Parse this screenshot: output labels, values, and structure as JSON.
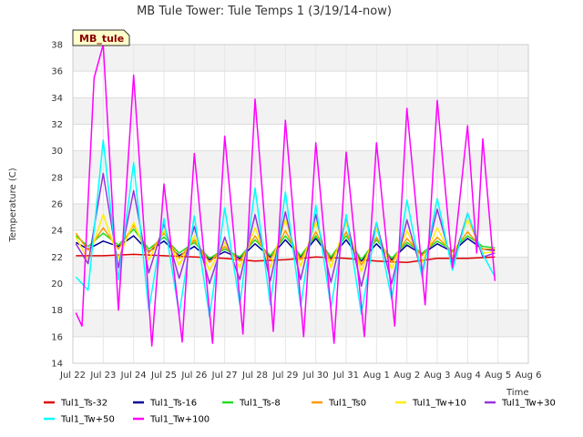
{
  "chart_data": {
    "type": "line",
    "title": "MB Tule Tower: Tule Temps 1 (3/19/14-now)",
    "station_label": "MB_tule",
    "xlabel": "Time",
    "ylabel": "Temperature (C)",
    "ylim": [
      14,
      38
    ],
    "yticks": [
      14,
      16,
      18,
      20,
      22,
      24,
      26,
      28,
      30,
      32,
      34,
      36,
      38
    ],
    "xlim": [
      0,
      15
    ],
    "xticks": [
      {
        "value": 0,
        "label": "Jul 22"
      },
      {
        "value": 1,
        "label": "Jul 23"
      },
      {
        "value": 2,
        "label": "Jul 24"
      },
      {
        "value": 3,
        "label": "Jul 25"
      },
      {
        "value": 4,
        "label": "Jul 26"
      },
      {
        "value": 5,
        "label": "Jul 27"
      },
      {
        "value": 6,
        "label": "Jul 28"
      },
      {
        "value": 7,
        "label": "Jul 29"
      },
      {
        "value": 8,
        "label": "Jul 30"
      },
      {
        "value": 9,
        "label": "Jul 31"
      },
      {
        "value": 10,
        "label": "Aug 1"
      },
      {
        "value": 11,
        "label": "Aug 2"
      },
      {
        "value": 12,
        "label": "Aug 3"
      },
      {
        "value": 13,
        "label": "Aug 4"
      },
      {
        "value": 14,
        "label": "Aug 5"
      },
      {
        "value": 15,
        "label": "Aug 6"
      }
    ],
    "grid": true,
    "legend_position": "bottom",
    "series": [
      {
        "name": "Tul1_Ts-32",
        "color": "#dd0000",
        "x": [
          0.1,
          1,
          2,
          3,
          4,
          5,
          6,
          7,
          8,
          9,
          10,
          11,
          12,
          13,
          13.9
        ],
        "y": [
          22.1,
          22.1,
          22.2,
          22.1,
          22.0,
          21.9,
          21.7,
          21.8,
          22.0,
          21.9,
          21.7,
          21.6,
          21.9,
          21.9,
          22.0
        ]
      },
      {
        "name": "Tul1_Ts-16",
        "color": "#000099",
        "x": [
          0.1,
          0.5,
          1.0,
          1.5,
          2.0,
          2.5,
          3.0,
          3.5,
          4.0,
          4.5,
          5.0,
          5.5,
          6.0,
          6.5,
          7.0,
          7.5,
          8.0,
          8.5,
          9.0,
          9.5,
          10.0,
          10.5,
          11.0,
          11.5,
          12.0,
          12.5,
          13.0,
          13.5,
          13.9
        ],
        "y": [
          23.1,
          22.6,
          23.2,
          22.8,
          23.6,
          22.4,
          23.2,
          22.1,
          22.8,
          21.8,
          22.4,
          21.9,
          23.0,
          22.0,
          23.3,
          22.0,
          23.4,
          21.9,
          23.3,
          21.7,
          23.0,
          21.8,
          22.9,
          22.2,
          23.0,
          22.4,
          23.4,
          22.6,
          22.5
        ]
      },
      {
        "name": "Tul1_Ts-8",
        "color": "#22dd22",
        "x": [
          0.1,
          0.5,
          1.0,
          1.5,
          2.0,
          2.5,
          3.0,
          3.5,
          4.0,
          4.5,
          5.0,
          5.5,
          6.0,
          6.5,
          7.0,
          7.5,
          8.0,
          8.5,
          9.0,
          9.5,
          10.0,
          10.5,
          11.0,
          11.5,
          12.0,
          12.5,
          13.0,
          13.5,
          13.9
        ],
        "y": [
          23.6,
          22.8,
          23.8,
          22.9,
          24.1,
          22.6,
          23.5,
          22.3,
          23.1,
          21.9,
          22.6,
          22.0,
          23.3,
          22.1,
          23.6,
          22.1,
          23.6,
          22.0,
          23.6,
          21.8,
          23.3,
          21.9,
          23.1,
          22.3,
          23.2,
          22.5,
          23.6,
          22.8,
          22.7
        ]
      },
      {
        "name": "Tul1_Ts0",
        "color": "#ff9900",
        "x": [
          0.1,
          0.5,
          1.0,
          1.5,
          2.0,
          2.5,
          3.0,
          3.5,
          4.0,
          4.5,
          5.0,
          5.5,
          6.0,
          6.5,
          7.0,
          7.5,
          8.0,
          8.5,
          9.0,
          9.5,
          10.0,
          10.5,
          11.0,
          11.5,
          12.0,
          12.5,
          13.0,
          13.5,
          13.9
        ],
        "y": [
          23.8,
          22.5,
          24.2,
          22.6,
          24.4,
          22.3,
          23.8,
          21.9,
          23.3,
          21.6,
          22.8,
          21.7,
          23.6,
          21.8,
          24.0,
          21.8,
          23.9,
          21.7,
          23.9,
          21.4,
          23.5,
          21.6,
          23.4,
          22.1,
          23.5,
          22.4,
          23.9,
          22.6,
          22.6
        ]
      },
      {
        "name": "Tul1_Tw+10",
        "color": "#ffee00",
        "x": [
          0.1,
          0.5,
          1.0,
          1.5,
          2.0,
          2.5,
          3.0,
          3.5,
          4.0,
          4.5,
          5.0,
          5.5,
          6.0,
          6.5,
          7.0,
          7.5,
          8.0,
          8.5,
          9.0,
          9.5,
          10.0,
          10.5,
          11.0,
          11.5,
          12.0,
          12.5,
          13.0,
          13.5,
          13.9
        ],
        "y": [
          23.5,
          21.8,
          25.2,
          21.9,
          24.6,
          21.8,
          24.0,
          21.4,
          23.6,
          21.0,
          23.1,
          21.2,
          24.2,
          21.2,
          24.8,
          21.3,
          24.6,
          21.2,
          24.6,
          20.9,
          24.1,
          21.1,
          24.0,
          21.6,
          24.2,
          22.0,
          24.8,
          22.3,
          22.4
        ]
      },
      {
        "name": "Tul1_Tw+30",
        "color": "#9933dd",
        "x": [
          0.1,
          0.5,
          1.0,
          1.5,
          2.0,
          2.5,
          3.0,
          3.5,
          4.0,
          4.5,
          5.0,
          5.5,
          6.0,
          6.5,
          7.0,
          7.5,
          8.0,
          8.5,
          9.0,
          9.5,
          10.0,
          10.5,
          11.0,
          11.5,
          12.0,
          12.5,
          13.0,
          13.5,
          13.9
        ],
        "y": [
          23.0,
          21.5,
          28.3,
          21.2,
          27.0,
          20.8,
          24.5,
          20.4,
          24.3,
          20.0,
          23.5,
          20.3,
          25.2,
          20.2,
          25.4,
          20.3,
          25.2,
          20.1,
          25.0,
          19.8,
          24.6,
          20.0,
          24.8,
          20.8,
          25.6,
          21.4,
          25.3,
          22.0,
          22.3
        ]
      },
      {
        "name": "Tul1_Tw+50",
        "color": "#00ffff",
        "x": [
          0.1,
          0.5,
          1.0,
          1.5,
          2.0,
          2.5,
          3.0,
          3.5,
          4.0,
          4.5,
          5.0,
          5.5,
          6.0,
          6.5,
          7.0,
          7.5,
          8.0,
          8.5,
          9.0,
          9.5,
          10.0,
          10.5,
          11.0,
          11.5,
          12.0,
          12.5,
          13.0,
          13.5,
          13.9
        ],
        "y": [
          20.5,
          19.5,
          30.8,
          20.3,
          29.1,
          18.0,
          24.9,
          17.7,
          25.1,
          17.5,
          25.7,
          18.4,
          27.2,
          18.4,
          26.9,
          18.3,
          25.9,
          18.2,
          25.2,
          17.7,
          24.6,
          18.8,
          26.3,
          20.5,
          26.4,
          21.0,
          25.3,
          22.2,
          20.5
        ]
      },
      {
        "name": "Tul1_Tw+100",
        "color": "#ff00ff",
        "x": [
          0.1,
          0.3,
          0.7,
          1.0,
          1.5,
          2.0,
          2.6,
          3.0,
          3.6,
          4.0,
          4.6,
          5.0,
          5.6,
          6.0,
          6.6,
          7.0,
          7.6,
          8.0,
          8.6,
          9.0,
          9.6,
          10.0,
          10.6,
          11.0,
          11.6,
          12.0,
          12.5,
          13.0,
          13.3,
          13.5,
          13.9
        ],
        "y": [
          17.8,
          16.8,
          35.5,
          38.0,
          18.0,
          35.7,
          15.3,
          27.5,
          15.6,
          29.8,
          15.5,
          31.1,
          16.2,
          33.9,
          16.4,
          32.3,
          16.0,
          30.6,
          15.5,
          29.9,
          16.0,
          30.6,
          16.8,
          33.2,
          18.4,
          33.8,
          21.2,
          31.9,
          22.3,
          30.9,
          20.2
        ]
      }
    ]
  }
}
